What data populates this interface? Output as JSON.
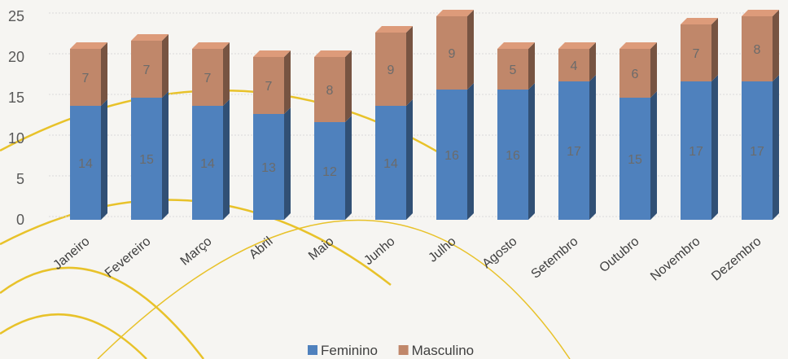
{
  "chart_data": {
    "type": "bar",
    "stacked": true,
    "categories": [
      "Janeiro",
      "Fevereiro",
      "Março",
      "Abril",
      "Maio",
      "Junho",
      "Julho",
      "Agosto",
      "Setembro",
      "Outubro",
      "Novembro",
      "Dezembro"
    ],
    "series": [
      {
        "name": "Feminino",
        "color": "#4f81bd",
        "values": [
          14,
          15,
          14,
          13,
          12,
          14,
          16,
          16,
          17,
          15,
          17,
          17
        ]
      },
      {
        "name": "Masculino",
        "color": "#c0876a",
        "values": [
          7,
          7,
          7,
          7,
          8,
          9,
          9,
          5,
          4,
          6,
          7,
          8
        ]
      }
    ],
    "y_ticks": [
      0,
      5,
      10,
      15,
      20,
      25
    ],
    "ylim": [
      0,
      25
    ],
    "grid": true,
    "legend_position": "bottom",
    "data_labels": true
  }
}
